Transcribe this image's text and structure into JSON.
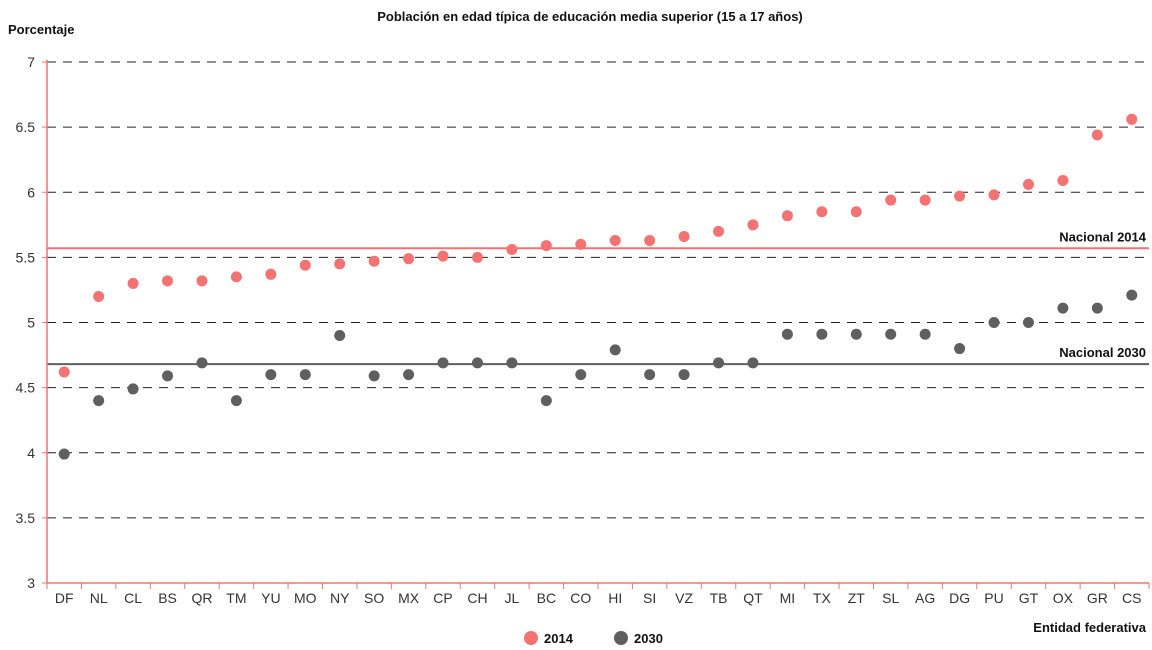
{
  "chart_data": {
    "type": "scatter",
    "title": "Población en edad típica de educación media superior (15 a 17 años)",
    "ylabel": "Porcentaje",
    "xlabel": "Entidad federativa",
    "ylim": [
      3,
      7
    ],
    "yticks": [
      "3",
      "3.5",
      "4",
      "4.5",
      "5",
      "5.5",
      "6",
      "6.5",
      "7"
    ],
    "grid": "horizontal dashed",
    "legend_position": "bottom-center",
    "categories": [
      "DF",
      "NL",
      "CL",
      "BS",
      "QR",
      "TM",
      "YU",
      "MO",
      "NY",
      "SO",
      "MX",
      "CP",
      "CH",
      "JL",
      "BC",
      "CO",
      "HI",
      "SI",
      "VZ",
      "TB",
      "QT",
      "MI",
      "TX",
      "ZT",
      "SL",
      "AG",
      "DG",
      "PU",
      "GT",
      "OX",
      "GR",
      "CS"
    ],
    "series": [
      {
        "name": "2014",
        "color": "#f47372",
        "values": [
          4.62,
          5.2,
          5.3,
          5.32,
          5.32,
          5.35,
          5.37,
          5.44,
          5.45,
          5.47,
          5.49,
          5.51,
          5.5,
          5.56,
          5.59,
          5.6,
          5.63,
          5.63,
          5.66,
          5.7,
          5.75,
          5.82,
          5.85,
          5.85,
          5.94,
          5.94,
          5.97,
          5.98,
          6.06,
          6.09,
          6.44,
          6.56
        ]
      },
      {
        "name": "2030",
        "color": "#5f5f5f",
        "values": [
          3.99,
          4.4,
          4.49,
          4.59,
          4.69,
          4.4,
          4.6,
          4.6,
          4.9,
          4.59,
          4.6,
          4.69,
          4.69,
          4.69,
          4.4,
          4.6,
          4.79,
          4.6,
          4.6,
          4.69,
          4.69,
          4.91,
          4.91,
          4.91,
          4.91,
          4.91,
          4.8,
          5.0,
          5.0,
          5.11,
          5.11,
          5.21
        ]
      }
    ],
    "reference_lines": [
      {
        "label": "Nacional 2014",
        "value": 5.57,
        "color": "#f47372"
      },
      {
        "label": "Nacional 2030",
        "value": 4.68,
        "color": "#5f5f5f"
      }
    ],
    "axis_color": "#f47372"
  }
}
